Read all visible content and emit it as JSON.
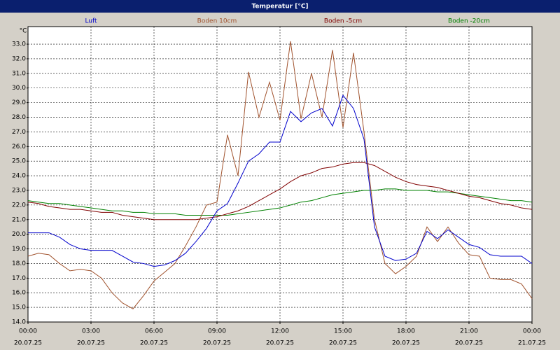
{
  "chart_data": {
    "type": "line",
    "title": "Temperatur [°C]",
    "y_unit": "°C",
    "x": [
      0,
      0.5,
      1,
      1.5,
      2,
      2.5,
      3,
      3.5,
      4,
      4.5,
      5,
      5.5,
      6,
      6.5,
      7,
      7.5,
      8,
      8.5,
      9,
      9.5,
      10,
      10.5,
      11,
      11.5,
      12,
      12.5,
      13,
      13.5,
      14,
      14.5,
      15,
      15.5,
      16,
      16.5,
      17,
      17.5,
      18,
      18.5,
      19,
      19.5,
      20,
      20.5,
      21,
      21.5,
      22,
      22.5,
      23,
      23.5,
      24
    ],
    "xlim": [
      0,
      24
    ],
    "xticks": [
      {
        "value": 0,
        "label": "00:00",
        "sublabel": "20.07.25"
      },
      {
        "value": 3,
        "label": "03:00",
        "sublabel": "20.07.25"
      },
      {
        "value": 6,
        "label": "06:00",
        "sublabel": "20.07.25"
      },
      {
        "value": 9,
        "label": "09:00",
        "sublabel": "20.07.25"
      },
      {
        "value": 12,
        "label": "12:00",
        "sublabel": "20.07.25"
      },
      {
        "value": 15,
        "label": "15:00",
        "sublabel": "20.07.25"
      },
      {
        "value": 18,
        "label": "18:00",
        "sublabel": "20.07.25"
      },
      {
        "value": 21,
        "label": "21:00",
        "sublabel": "20.07.25"
      },
      {
        "value": 24,
        "label": "00:00",
        "sublabel": "21.07.25"
      }
    ],
    "ylim": [
      14,
      34.2
    ],
    "yticks": [
      {
        "value": 14,
        "label": "14.0"
      },
      {
        "value": 15,
        "label": "15.0"
      },
      {
        "value": 16,
        "label": "16.0"
      },
      {
        "value": 17,
        "label": "17.0"
      },
      {
        "value": 18,
        "label": "18.0"
      },
      {
        "value": 19,
        "label": "19.0"
      },
      {
        "value": 20,
        "label": "20.0"
      },
      {
        "value": 21,
        "label": "21.0"
      },
      {
        "value": 22,
        "label": "22.0"
      },
      {
        "value": 23,
        "label": "23.0"
      },
      {
        "value": 24,
        "label": "24.0"
      },
      {
        "value": 25,
        "label": "25.0"
      },
      {
        "value": 26,
        "label": "26.0"
      },
      {
        "value": 27,
        "label": "27.0"
      },
      {
        "value": 28,
        "label": "28.0"
      },
      {
        "value": 29,
        "label": "29.0"
      },
      {
        "value": 30,
        "label": "30.0"
      },
      {
        "value": 31,
        "label": "31.0"
      },
      {
        "value": 32,
        "label": "32.0"
      },
      {
        "value": 33,
        "label": "33.0"
      }
    ],
    "grid": true,
    "series": [
      {
        "name": "Luft",
        "color": "#0000cc",
        "values": [
          20.1,
          20.1,
          20.1,
          19.8,
          19.3,
          19.0,
          18.9,
          18.9,
          18.9,
          18.5,
          18.1,
          18.0,
          17.8,
          17.9,
          18.2,
          18.7,
          19.5,
          20.4,
          21.6,
          22.1,
          23.5,
          25.0,
          25.5,
          26.3,
          26.3,
          28.4,
          27.7,
          28.3,
          28.6,
          27.4,
          29.5,
          28.6,
          26.5,
          20.5,
          18.5,
          18.2,
          18.3,
          18.7,
          20.2,
          19.7,
          20.3,
          19.8,
          19.3,
          19.1,
          18.6,
          18.5,
          18.5,
          18.5,
          18.0
        ]
      },
      {
        "name": "Boden 10cm",
        "color": "#a0522d",
        "values": [
          18.5,
          18.7,
          18.6,
          18.0,
          17.5,
          17.6,
          17.5,
          17.0,
          16.0,
          15.3,
          14.9,
          15.8,
          16.8,
          17.4,
          18.0,
          19.2,
          20.5,
          22.0,
          22.2,
          26.8,
          24.0,
          31.1,
          28.0,
          30.4,
          27.8,
          33.2,
          27.9,
          31.0,
          28.0,
          32.6,
          27.3,
          32.4,
          27.0,
          21.0,
          18.0,
          17.3,
          17.8,
          18.5,
          20.5,
          19.5,
          20.5,
          19.4,
          18.6,
          18.5,
          17.0,
          16.9,
          16.9,
          16.6,
          15.6
        ]
      },
      {
        "name": "Boden -5cm",
        "color": "#800000",
        "values": [
          22.2,
          22.1,
          21.9,
          21.8,
          21.7,
          21.7,
          21.6,
          21.5,
          21.5,
          21.3,
          21.2,
          21.1,
          21.0,
          21.0,
          21.0,
          21.0,
          21.0,
          21.1,
          21.2,
          21.4,
          21.6,
          21.9,
          22.3,
          22.7,
          23.1,
          23.6,
          24.0,
          24.2,
          24.5,
          24.6,
          24.8,
          24.9,
          24.9,
          24.7,
          24.3,
          23.9,
          23.6,
          23.4,
          23.3,
          23.2,
          23.0,
          22.8,
          22.6,
          22.5,
          22.3,
          22.1,
          22.0,
          21.8,
          21.7
        ]
      },
      {
        "name": "Boden -20cm",
        "color": "#008000",
        "values": [
          22.3,
          22.2,
          22.1,
          22.1,
          22.0,
          21.9,
          21.8,
          21.7,
          21.6,
          21.6,
          21.5,
          21.5,
          21.4,
          21.4,
          21.4,
          21.3,
          21.3,
          21.3,
          21.3,
          21.3,
          21.4,
          21.5,
          21.6,
          21.7,
          21.8,
          22.0,
          22.2,
          22.3,
          22.5,
          22.7,
          22.8,
          22.9,
          23.0,
          23.0,
          23.1,
          23.1,
          23.0,
          23.0,
          23.0,
          22.9,
          22.9,
          22.8,
          22.7,
          22.6,
          22.5,
          22.4,
          22.3,
          22.3,
          22.2
        ]
      }
    ]
  }
}
